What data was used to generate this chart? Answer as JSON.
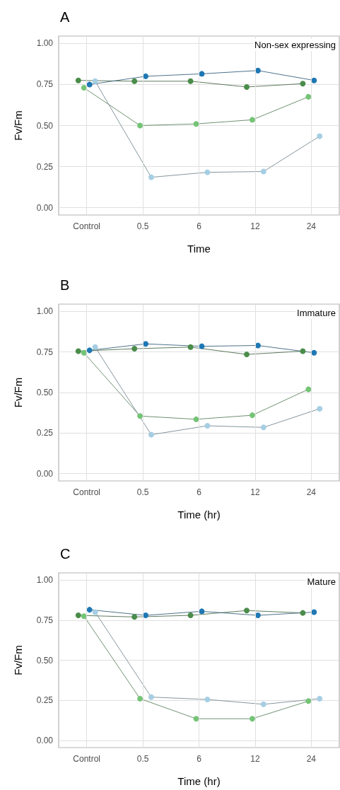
{
  "chart_data": [
    {
      "type": "line",
      "title": "A",
      "xlabel": "Time",
      "ylabel": "Fv/Fm",
      "annotations": [
        "Non-sex expressing"
      ],
      "categories": [
        "Control",
        "0.5",
        "6",
        "12",
        "24"
      ],
      "ylim": [
        -0.045,
        1.045
      ],
      "yticks": [
        {
          "value": 0,
          "label": "0.00"
        },
        {
          "value": 0.25,
          "label": "0.25"
        },
        {
          "value": 0.5,
          "label": "0.50"
        },
        {
          "value": 0.75,
          "label": "0.75"
        },
        {
          "value": 1,
          "label": "1.00"
        }
      ],
      "grid": true,
      "marker": "circle",
      "line_style": "solid",
      "series": [
        {
          "color": "#4a8c4a",
          "values": [
            0.775,
            0.77,
            0.77,
            0.735,
            0.755
          ]
        },
        {
          "color": "#74c476",
          "values": [
            0.73,
            0.5,
            0.51,
            0.535,
            0.675
          ]
        },
        {
          "color": "#1f78b4",
          "values": [
            0.75,
            0.8,
            0.815,
            0.835,
            0.775
          ]
        },
        {
          "color": "#a6cee3",
          "values": [
            0.77,
            0.185,
            0.215,
            0.22,
            0.435
          ]
        }
      ]
    },
    {
      "type": "line",
      "title": "B",
      "xlabel": "Time (hr)",
      "ylabel": "Fv/Fm",
      "annotations": [
        "Immature"
      ],
      "categories": [
        "Control",
        "0.5",
        "6",
        "12",
        "24"
      ],
      "ylim": [
        -0.045,
        1.045
      ],
      "yticks": [
        {
          "value": 0,
          "label": "0.00"
        },
        {
          "value": 0.25,
          "label": "0.25"
        },
        {
          "value": 0.5,
          "label": "0.50"
        },
        {
          "value": 0.75,
          "label": "0.75"
        },
        {
          "value": 1,
          "label": "1.00"
        }
      ],
      "grid": true,
      "marker": "circle",
      "line_style": "solid",
      "series": [
        {
          "color": "#4a8c4a",
          "values": [
            0.755,
            0.77,
            0.78,
            0.735,
            0.755
          ]
        },
        {
          "color": "#74c476",
          "values": [
            0.745,
            0.355,
            0.335,
            0.36,
            0.52
          ]
        },
        {
          "color": "#1f78b4",
          "values": [
            0.76,
            0.8,
            0.785,
            0.79,
            0.745
          ]
        },
        {
          "color": "#a6cee3",
          "values": [
            0.78,
            0.24,
            0.295,
            0.285,
            0.4
          ]
        }
      ]
    },
    {
      "type": "line",
      "title": "C",
      "xlabel": "Time (hr)",
      "ylabel": "Fv/Fm",
      "annotations": [
        "Mature"
      ],
      "categories": [
        "Control",
        "0.5",
        "6",
        "12",
        "24"
      ],
      "ylim": [
        -0.045,
        1.045
      ],
      "yticks": [
        {
          "value": 0,
          "label": "0.00"
        },
        {
          "value": 0.25,
          "label": "0.25"
        },
        {
          "value": 0.5,
          "label": "0.50"
        },
        {
          "value": 0.75,
          "label": "0.75"
        },
        {
          "value": 1,
          "label": "1.00"
        }
      ],
      "grid": true,
      "marker": "circle",
      "line_style": "solid",
      "series": [
        {
          "color": "#4a8c4a",
          "values": [
            0.78,
            0.77,
            0.78,
            0.81,
            0.795
          ]
        },
        {
          "color": "#74c476",
          "values": [
            0.775,
            0.26,
            0.135,
            0.135,
            0.245
          ]
        },
        {
          "color": "#1f78b4",
          "values": [
            0.815,
            0.78,
            0.805,
            0.78,
            0.8
          ]
        },
        {
          "color": "#a6cee3",
          "values": [
            0.8,
            0.27,
            0.255,
            0.225,
            0.26
          ]
        }
      ]
    }
  ]
}
